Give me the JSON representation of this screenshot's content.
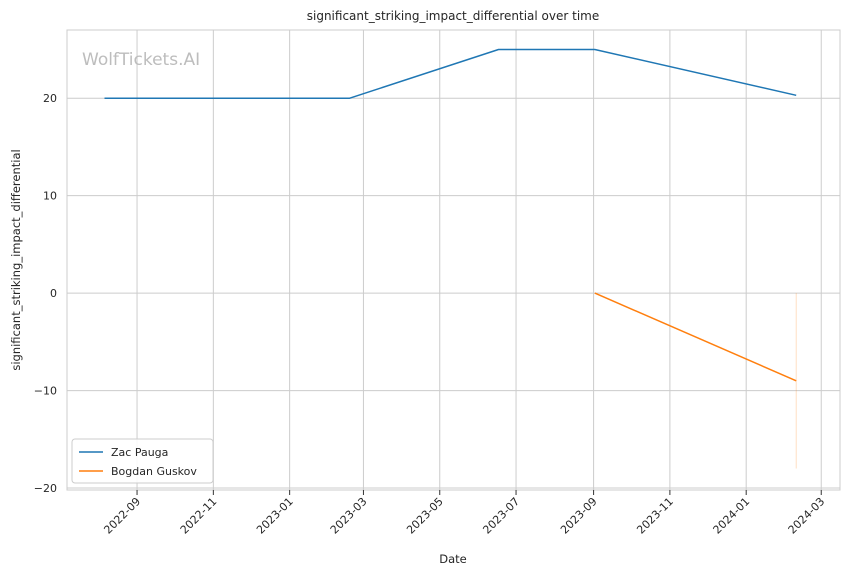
{
  "chart_data": {
    "type": "line",
    "title": "significant_striking_impact_differential over time",
    "xlabel": "Date",
    "ylabel": "significant_striking_impact_differential",
    "watermark": "WolfTickets.AI",
    "x_ticks": [
      "2022-09",
      "2022-11",
      "2023-01",
      "2023-03",
      "2023-05",
      "2023-07",
      "2023-09",
      "2023-11",
      "2024-01",
      "2024-03"
    ],
    "y_ticks": [
      20,
      10,
      0,
      -10,
      -20
    ],
    "xlim": [
      "2022-07-07",
      "2024-03-16"
    ],
    "ylim": [
      -20.2,
      27
    ],
    "grid": true,
    "legend_position": "lower-left",
    "series": [
      {
        "name": "Zac Pauga",
        "color": "#1f77b4",
        "points": [
          {
            "x": "2022-08-06",
            "y": 20
          },
          {
            "x": "2023-02-18",
            "y": 20
          },
          {
            "x": "2023-06-17",
            "y": 25
          },
          {
            "x": "2023-09-02",
            "y": 25
          },
          {
            "x": "2024-02-10",
            "y": 20.3
          }
        ]
      },
      {
        "name": "Bogdan Guskov",
        "color": "#ff7f0e",
        "points": [
          {
            "x": "2023-09-02",
            "y": 0
          },
          {
            "x": "2024-02-10",
            "y": -9
          }
        ]
      }
    ],
    "band": {
      "x": "2024-02-10",
      "y_from": 0,
      "y_to": -18,
      "color": "#ff7f0e"
    }
  }
}
